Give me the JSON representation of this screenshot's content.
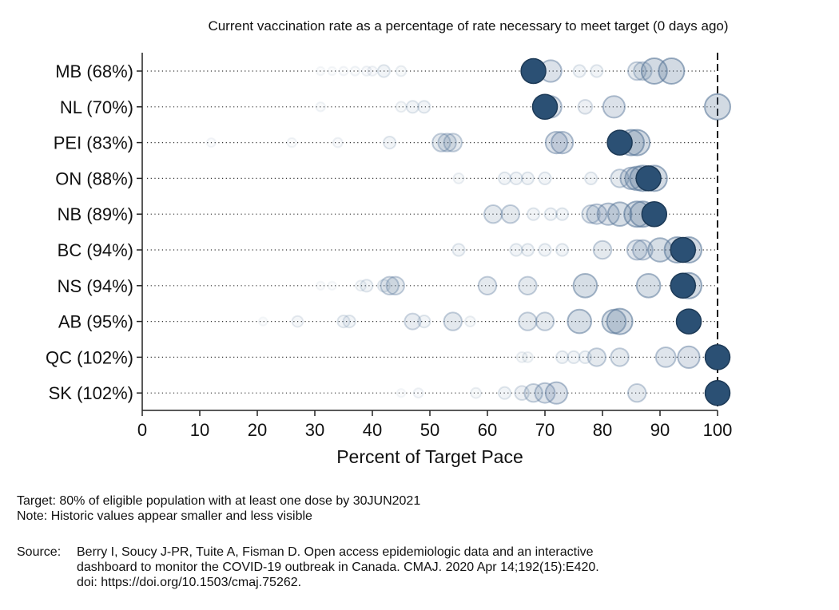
{
  "chart_data": {
    "type": "scatter",
    "title": "Current vaccination rate as a percentage of rate necessary to meet target (0 days ago)",
    "xlabel": "Percent of Target Pace",
    "ylabel": "",
    "xlim": [
      0,
      100
    ],
    "x_ticks": [
      "0",
      "10",
      "20",
      "30",
      "40",
      "50",
      "60",
      "70",
      "80",
      "90",
      "100"
    ],
    "reference_line": 100,
    "categories": [
      "MB (68%)",
      "NL (70%)",
      "PEI (83%)",
      "ON (88%)",
      "NB (89%)",
      "BC (94%)",
      "NS (94%)",
      "AB (95%)",
      "QC (102%)",
      "SK (102%)"
    ],
    "series": [
      {
        "current": 68,
        "history": [
          [
            31,
            0.05
          ],
          [
            33,
            0.05
          ],
          [
            35,
            0.06
          ],
          [
            37,
            0.07
          ],
          [
            39,
            0.08
          ],
          [
            40,
            0.08
          ],
          [
            42,
            0.15
          ],
          [
            45,
            0.1
          ],
          [
            71,
            0.4
          ],
          [
            76,
            0.15
          ],
          [
            79,
            0.15
          ],
          [
            86,
            0.3
          ],
          [
            87,
            0.3
          ],
          [
            89,
            0.5
          ],
          [
            92,
            0.5
          ]
        ]
      },
      {
        "current": 70,
        "history": [
          [
            31,
            0.07
          ],
          [
            45,
            0.1
          ],
          [
            47,
            0.15
          ],
          [
            49,
            0.15
          ],
          [
            70,
            0.4
          ],
          [
            71,
            0.4
          ],
          [
            77,
            0.2
          ],
          [
            82,
            0.4
          ],
          [
            100,
            0.5
          ]
        ]
      },
      {
        "current": 83,
        "history": [
          [
            12,
            0.06
          ],
          [
            26,
            0.07
          ],
          [
            34,
            0.08
          ],
          [
            43,
            0.15
          ],
          [
            52,
            0.3
          ],
          [
            53,
            0.3
          ],
          [
            54,
            0.3
          ],
          [
            72,
            0.4
          ],
          [
            73,
            0.4
          ],
          [
            85,
            0.5
          ],
          [
            86,
            0.5
          ]
        ]
      },
      {
        "current": 88,
        "history": [
          [
            55,
            0.1
          ],
          [
            63,
            0.15
          ],
          [
            65,
            0.15
          ],
          [
            67,
            0.15
          ],
          [
            70,
            0.15
          ],
          [
            78,
            0.15
          ],
          [
            83,
            0.3
          ],
          [
            85,
            0.4
          ],
          [
            86,
            0.45
          ],
          [
            87,
            0.5
          ],
          [
            89,
            0.5
          ]
        ]
      },
      {
        "current": 89,
        "history": [
          [
            61,
            0.3
          ],
          [
            64,
            0.3
          ],
          [
            68,
            0.15
          ],
          [
            71,
            0.15
          ],
          [
            73,
            0.15
          ],
          [
            78,
            0.3
          ],
          [
            79,
            0.35
          ],
          [
            81,
            0.4
          ],
          [
            83,
            0.45
          ],
          [
            86,
            0.5
          ],
          [
            87,
            0.5
          ]
        ]
      },
      {
        "current": 94,
        "history": [
          [
            55,
            0.15
          ],
          [
            65,
            0.15
          ],
          [
            67,
            0.15
          ],
          [
            70,
            0.15
          ],
          [
            73,
            0.15
          ],
          [
            80,
            0.3
          ],
          [
            86,
            0.35
          ],
          [
            87,
            0.35
          ],
          [
            90,
            0.45
          ],
          [
            93,
            0.5
          ],
          [
            95,
            0.5
          ]
        ]
      },
      {
        "current": 94,
        "history": [
          [
            31,
            0.05
          ],
          [
            33,
            0.05
          ],
          [
            38,
            0.1
          ],
          [
            39,
            0.15
          ],
          [
            42,
            0.15
          ],
          [
            43,
            0.3
          ],
          [
            44,
            0.3
          ],
          [
            60,
            0.3
          ],
          [
            67,
            0.3
          ],
          [
            77,
            0.45
          ],
          [
            88,
            0.45
          ],
          [
            95,
            0.5
          ]
        ]
      },
      {
        "current": 95,
        "history": [
          [
            21,
            0.05
          ],
          [
            27,
            0.12
          ],
          [
            35,
            0.15
          ],
          [
            36,
            0.15
          ],
          [
            47,
            0.25
          ],
          [
            49,
            0.15
          ],
          [
            54,
            0.3
          ],
          [
            57,
            0.1
          ],
          [
            67,
            0.3
          ],
          [
            70,
            0.3
          ],
          [
            76,
            0.45
          ],
          [
            82,
            0.45
          ],
          [
            83,
            0.5
          ]
        ]
      },
      {
        "current": 102,
        "history": [
          [
            66,
            0.1
          ],
          [
            67,
            0.1
          ],
          [
            73,
            0.15
          ],
          [
            75,
            0.15
          ],
          [
            77,
            0.15
          ],
          [
            79,
            0.3
          ],
          [
            83,
            0.3
          ],
          [
            91,
            0.35
          ],
          [
            95,
            0.4
          ]
        ]
      },
      {
        "current": 102,
        "history": [
          [
            45,
            0.05
          ],
          [
            48,
            0.08
          ],
          [
            58,
            0.1
          ],
          [
            63,
            0.15
          ],
          [
            66,
            0.2
          ],
          [
            68,
            0.3
          ],
          [
            70,
            0.35
          ],
          [
            72,
            0.4
          ],
          [
            86,
            0.3
          ]
        ]
      }
    ],
    "colors": {
      "marker": "#2b5074",
      "marker_edge": "#1d3a57",
      "history": "#5a789a",
      "text": "#111111"
    }
  },
  "notes": {
    "target": "Target: 80% of eligible population with at least one dose by 30JUN2021",
    "note": "Note: Historic values appear smaller and less visible"
  },
  "source": {
    "label": "Source:",
    "lines": [
      "Berry I, Soucy J-PR, Tuite A, Fisman D. Open access epidemiologic data and an interactive",
      "dashboard to monitor the COVID-19 outbreak in Canada. CMAJ. 2020 Apr 14;192(15):E420.",
      "doi: https://doi.org/10.1503/cmaj.75262."
    ]
  }
}
